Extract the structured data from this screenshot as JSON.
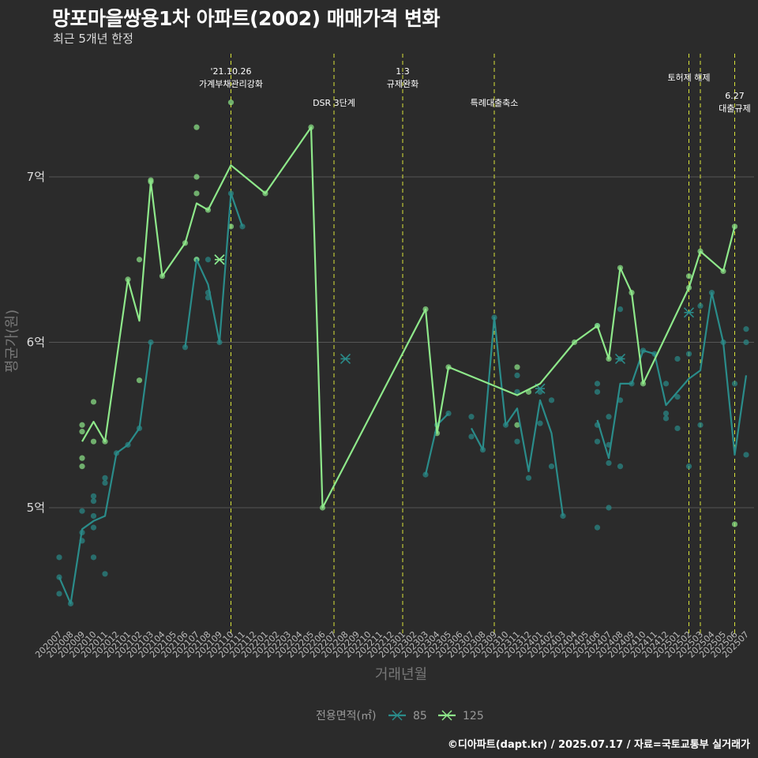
{
  "header": {
    "title": "망포마을쌍용1차 아파트(2002) 매매가격 변화",
    "subtitle": "최근 5개년 한정"
  },
  "footer": {
    "caption": "©디아파트(dapt.kr) / 2025.07.17 / 자료=국토교통부 실거래가"
  },
  "chart_data": {
    "type": "line",
    "title": "망포마을쌍용1차 아파트(2002) 매매가격 변화",
    "subtitle": "최근 5개년 한정",
    "xlabel": "거래년월",
    "ylabel": "평균가(원)",
    "y_unit": "억",
    "ylim": [
      4.28,
      7.98
    ],
    "yticks": [
      5,
      6,
      7
    ],
    "ytick_labels": [
      "5억",
      "6억",
      "7억"
    ],
    "grid": true,
    "legend": {
      "title": "전용면적(㎡)",
      "position": "bottom",
      "entries": [
        "85",
        "125"
      ]
    },
    "colors": {
      "85": "#2a8c8a",
      "125": "#8ee88a",
      "events": "#d8e33a",
      "background": "#2b2b2b",
      "grid": "#555555"
    },
    "x": [
      "202007",
      "202008",
      "202009",
      "202010",
      "202011",
      "202012",
      "202101",
      "202102",
      "202103",
      "202104",
      "202105",
      "202106",
      "202107",
      "202108",
      "202109",
      "202110",
      "202111",
      "202112",
      "202201",
      "202202",
      "202203",
      "202204",
      "202205",
      "202206",
      "202207",
      "202208",
      "202209",
      "202210",
      "202211",
      "202212",
      "202301",
      "202302",
      "202303",
      "202304",
      "202305",
      "202306",
      "202307",
      "202308",
      "202309",
      "202310",
      "202311",
      "202312",
      "202401",
      "202402",
      "202403",
      "202404",
      "202405",
      "202406",
      "202407",
      "202408",
      "202409",
      "202410",
      "202411",
      "202412",
      "202501",
      "202502",
      "202503",
      "202504",
      "202505",
      "202506",
      "202507"
    ],
    "series": [
      {
        "name": "85",
        "lines": [
          [
            [
              "202007",
              4.58
            ],
            [
              "202008",
              4.42
            ],
            [
              "202009",
              4.87
            ],
            [
              "202010",
              4.92
            ],
            [
              "202011",
              4.95
            ],
            [
              "202012",
              5.33
            ],
            [
              "202101",
              5.38
            ],
            [
              "202102",
              5.48
            ],
            [
              "202103",
              6.0
            ]
          ],
          [
            [
              "202106",
              5.97
            ],
            [
              "202107",
              6.5
            ],
            [
              "202108",
              6.35
            ],
            [
              "202109",
              6.0
            ],
            [
              "202110",
              6.9
            ],
            [
              "202111",
              6.7
            ]
          ],
          [
            [
              "202303",
              5.2
            ],
            [
              "202304",
              5.5
            ],
            [
              "202305",
              5.57
            ]
          ],
          [
            [
              "202307",
              5.48
            ],
            [
              "202308",
              5.35
            ],
            [
              "202309",
              6.15
            ],
            [
              "202310",
              5.5
            ],
            [
              "202311",
              5.6
            ],
            [
              "202312",
              5.22
            ],
            [
              "202401",
              5.65
            ],
            [
              "202402",
              5.45
            ],
            [
              "202403",
              4.95
            ]
          ],
          [
            [
              "202406",
              5.53
            ],
            [
              "202407",
              5.3
            ],
            [
              "202408",
              5.75
            ],
            [
              "202409",
              5.75
            ],
            [
              "202410",
              5.95
            ],
            [
              "202411",
              5.93
            ],
            [
              "202412",
              5.62
            ],
            [
              "202501",
              5.7
            ],
            [
              "202502",
              5.78
            ],
            [
              "202503",
              5.83
            ],
            [
              "202504",
              6.3
            ],
            [
              "202505",
              6.0
            ],
            [
              "202506",
              5.32
            ],
            [
              "202507",
              5.8
            ]
          ]
        ],
        "points": [
          [
            "202007",
            4.7
          ],
          [
            "202007",
            4.58
          ],
          [
            "202007",
            4.48
          ],
          [
            "202008",
            4.42
          ],
          [
            "202009",
            4.98
          ],
          [
            "202009",
            4.85
          ],
          [
            "202009",
            4.8
          ],
          [
            "202010",
            5.07
          ],
          [
            "202010",
            5.04
          ],
          [
            "202010",
            4.95
          ],
          [
            "202010",
            4.88
          ],
          [
            "202010",
            4.7
          ],
          [
            "202011",
            5.18
          ],
          [
            "202011",
            5.15
          ],
          [
            "202011",
            4.6
          ],
          [
            "202012",
            5.33
          ],
          [
            "202101",
            5.38
          ],
          [
            "202102",
            5.48
          ],
          [
            "202103",
            6.0
          ],
          [
            "202106",
            5.97
          ],
          [
            "202107",
            6.5
          ],
          [
            "202108",
            6.5
          ],
          [
            "202108",
            6.3
          ],
          [
            "202108",
            6.27
          ],
          [
            "202109",
            6.0
          ],
          [
            "202110",
            6.9
          ],
          [
            "202111",
            6.7
          ],
          [
            "202303",
            5.2
          ],
          [
            "202304",
            5.5
          ],
          [
            "202305",
            5.57
          ],
          [
            "202307",
            5.55
          ],
          [
            "202307",
            5.43
          ],
          [
            "202308",
            5.35
          ],
          [
            "202309",
            6.15
          ],
          [
            "202310",
            5.5
          ],
          [
            "202311",
            5.8
          ],
          [
            "202311",
            5.7
          ],
          [
            "202311",
            5.4
          ],
          [
            "202312",
            5.18
          ],
          [
            "202401",
            5.7
          ],
          [
            "202401",
            5.51
          ],
          [
            "202402",
            5.65
          ],
          [
            "202402",
            5.25
          ],
          [
            "202403",
            4.95
          ],
          [
            "202406",
            6.1
          ],
          [
            "202406",
            5.75
          ],
          [
            "202406",
            5.7
          ],
          [
            "202406",
            5.5
          ],
          [
            "202406",
            5.4
          ],
          [
            "202406",
            4.88
          ],
          [
            "202407",
            5.55
          ],
          [
            "202407",
            5.38
          ],
          [
            "202407",
            5.27
          ],
          [
            "202407",
            5.0
          ],
          [
            "202408",
            6.2
          ],
          [
            "202408",
            5.9
          ],
          [
            "202408",
            5.65
          ],
          [
            "202408",
            5.25
          ],
          [
            "202409",
            5.75
          ],
          [
            "202410",
            5.95
          ],
          [
            "202411",
            5.93
          ],
          [
            "202412",
            5.75
          ],
          [
            "202412",
            5.57
          ],
          [
            "202412",
            5.54
          ],
          [
            "202501",
            5.9
          ],
          [
            "202501",
            5.67
          ],
          [
            "202501",
            5.48
          ],
          [
            "202502",
            5.93
          ],
          [
            "202502",
            5.25
          ],
          [
            "202503",
            6.22
          ],
          [
            "202503",
            5.5
          ],
          [
            "202504",
            6.3
          ],
          [
            "202505",
            6.0
          ],
          [
            "202506",
            5.75
          ],
          [
            "202507",
            6.08
          ],
          [
            "202507",
            6.0
          ],
          [
            "202507",
            5.32
          ]
        ],
        "single_marks": [
          [
            "202109",
            6.5
          ],
          [
            "202208",
            5.9
          ],
          [
            "202401",
            5.72
          ],
          [
            "202408",
            5.9
          ],
          [
            "202502",
            6.18
          ]
        ]
      },
      {
        "name": "125",
        "lines": [
          [
            [
              "202009",
              5.4
            ],
            [
              "202010",
              5.52
            ],
            [
              "202011",
              5.4
            ],
            [
              "202101",
              6.38
            ],
            [
              "202102",
              6.13
            ],
            [
              "202103",
              6.97
            ],
            [
              "202104",
              6.4
            ],
            [
              "202106",
              6.6
            ],
            [
              "202107",
              6.84
            ],
            [
              "202108",
              6.8
            ],
            [
              "202110",
              7.07
            ],
            [
              "202201",
              6.9
            ],
            [
              "202205",
              7.3
            ],
            [
              "202206",
              5.0
            ],
            [
              "202303",
              6.2
            ],
            [
              "202304",
              5.45
            ],
            [
              "202305",
              5.85
            ],
            [
              "202311",
              5.68
            ],
            [
              "202401",
              5.75
            ],
            [
              "202404",
              6.0
            ],
            [
              "202406",
              6.1
            ],
            [
              "202407",
              5.9
            ],
            [
              "202408",
              6.45
            ],
            [
              "202409",
              6.3
            ],
            [
              "202410",
              5.75
            ],
            [
              "202502",
              6.33
            ],
            [
              "202503",
              6.55
            ],
            [
              "202505",
              6.43
            ],
            [
              "202506",
              6.7
            ]
          ]
        ],
        "points": [
          [
            "202009",
            5.5
          ],
          [
            "202009",
            5.46
          ],
          [
            "202009",
            5.3
          ],
          [
            "202009",
            5.25
          ],
          [
            "202010",
            5.64
          ],
          [
            "202010",
            5.4
          ],
          [
            "202011",
            5.4
          ],
          [
            "202101",
            6.38
          ],
          [
            "202102",
            6.5
          ],
          [
            "202102",
            5.77
          ],
          [
            "202103",
            6.98
          ],
          [
            "202103",
            6.97
          ],
          [
            "202104",
            6.4
          ],
          [
            "202106",
            6.6
          ],
          [
            "202107",
            7.3
          ],
          [
            "202107",
            7.0
          ],
          [
            "202107",
            6.9
          ],
          [
            "202107",
            6.5
          ],
          [
            "202108",
            6.8
          ],
          [
            "202110",
            7.45
          ],
          [
            "202110",
            6.7
          ],
          [
            "202201",
            6.9
          ],
          [
            "202205",
            7.3
          ],
          [
            "202206",
            5.0
          ],
          [
            "202303",
            6.2
          ],
          [
            "202304",
            5.45
          ],
          [
            "202305",
            5.85
          ],
          [
            "202311",
            5.85
          ],
          [
            "202311",
            5.5
          ],
          [
            "202312",
            5.7
          ],
          [
            "202404",
            6.0
          ],
          [
            "202406",
            6.1
          ],
          [
            "202407",
            5.9
          ],
          [
            "202408",
            6.45
          ],
          [
            "202409",
            6.3
          ],
          [
            "202410",
            5.75
          ],
          [
            "202502",
            6.4
          ],
          [
            "202502",
            6.33
          ],
          [
            "202503",
            6.55
          ],
          [
            "202505",
            6.43
          ],
          [
            "202506",
            6.7
          ],
          [
            "202506",
            4.9
          ]
        ],
        "single_marks": [
          [
            "202109",
            6.5
          ]
        ]
      }
    ],
    "events": [
      {
        "x": "202110",
        "lines": [
          "'21.10.26",
          "가계부채관리강화"
        ],
        "row": 0
      },
      {
        "x": "202207",
        "lines": [
          "DSR 3단계"
        ],
        "row": 2
      },
      {
        "x": "202301",
        "lines": [
          "1.3",
          "규제완화"
        ],
        "row": 0
      },
      {
        "x": "202309",
        "lines": [
          "특례대출축소"
        ],
        "row": 2
      },
      {
        "x": "202502",
        "lines": [
          "토허제 해제"
        ],
        "row": 1
      },
      {
        "x": "202503",
        "lines": [],
        "row": 1
      },
      {
        "x": "202506",
        "lines": [
          "6.27",
          "대출규제"
        ],
        "row": 3
      }
    ]
  }
}
